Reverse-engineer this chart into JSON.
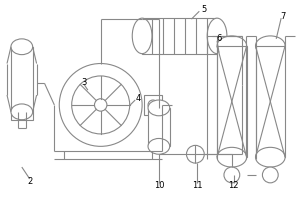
{
  "line_color": "#888888",
  "lw": 0.8,
  "label_fontsize": 6.0,
  "bg": "white"
}
